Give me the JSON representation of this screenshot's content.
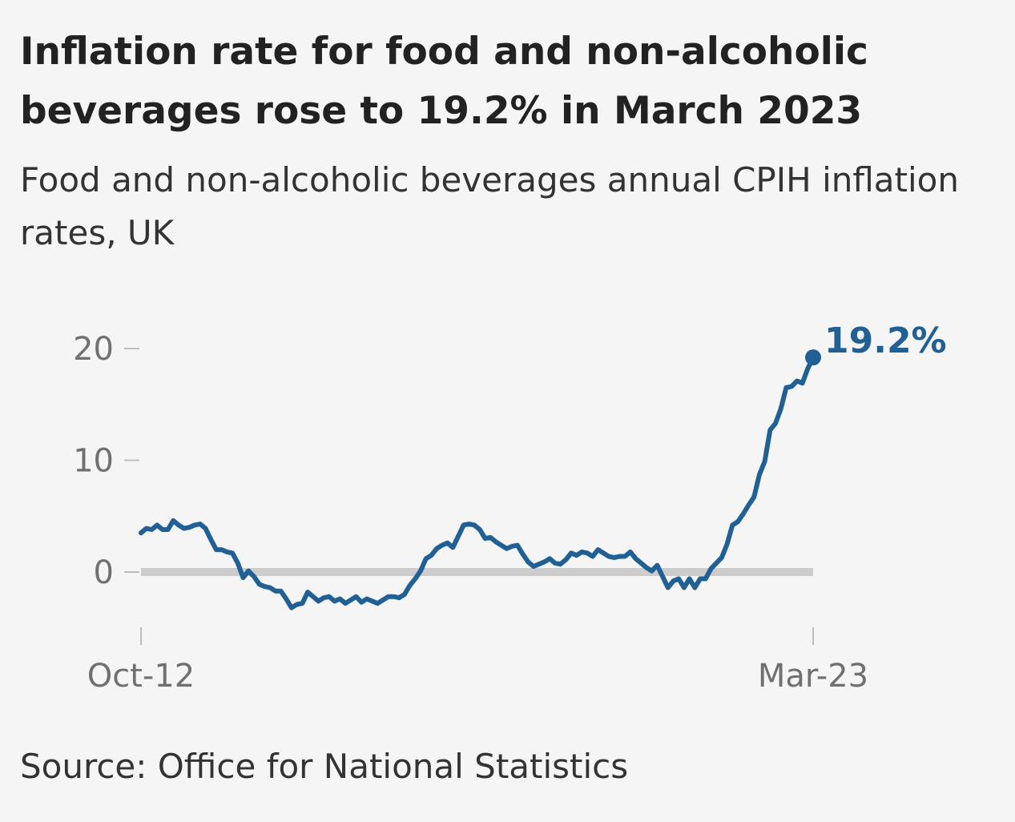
{
  "chart_data": {
    "type": "line",
    "title": "Inflation rate for food and non-alcoholic beverages rose to 19.2% in March 2023",
    "subtitle": "Food and non-alcoholic beverages annual CPIH inflation rates, UK",
    "source": "Source: Office for National Statistics",
    "xlabel": "",
    "ylabel": "",
    "x_tick_labels": [
      "Oct-12",
      "Mar-23"
    ],
    "y_ticks": [
      0,
      10,
      20
    ],
    "ylim": [
      -5,
      21
    ],
    "grid": false,
    "series": [
      {
        "name": "Food and non-alcoholic beverages annual CPIH inflation rate",
        "color": "#206095",
        "end_label": "19.2%",
        "x_start": "Oct-12",
        "x_end": "Mar-23",
        "values": [
          3.5,
          3.9,
          3.8,
          4.2,
          3.8,
          3.8,
          4.6,
          4.2,
          3.9,
          4.0,
          4.2,
          4.3,
          3.9,
          2.9,
          2.0,
          2.0,
          1.8,
          1.7,
          0.8,
          -0.5,
          0.1,
          -0.4,
          -1.1,
          -1.3,
          -1.4,
          -1.7,
          -1.7,
          -2.4,
          -3.2,
          -2.9,
          -2.8,
          -1.8,
          -2.2,
          -2.6,
          -2.3,
          -2.2,
          -2.6,
          -2.4,
          -2.8,
          -2.5,
          -2.2,
          -2.7,
          -2.4,
          -2.6,
          -2.8,
          -2.5,
          -2.2,
          -2.2,
          -2.3,
          -2.0,
          -1.2,
          -0.6,
          0.1,
          1.2,
          1.5,
          2.1,
          2.4,
          2.6,
          2.2,
          3.2,
          4.2,
          4.3,
          4.2,
          3.8,
          3.0,
          3.1,
          2.7,
          2.4,
          2.1,
          2.3,
          2.4,
          1.6,
          0.9,
          0.5,
          0.7,
          0.9,
          1.2,
          0.8,
          0.7,
          1.1,
          1.7,
          1.5,
          1.8,
          1.7,
          1.4,
          2.0,
          1.7,
          1.4,
          1.3,
          1.4,
          1.4,
          1.8,
          1.2,
          0.8,
          0.4,
          0.1,
          0.6,
          -0.4,
          -1.4,
          -0.8,
          -0.6,
          -1.4,
          -0.6,
          -1.4,
          -0.6,
          -0.6,
          0.3,
          0.8,
          1.3,
          2.5,
          4.2,
          4.5,
          5.2,
          6.0,
          6.7,
          8.7,
          9.9,
          12.7,
          13.3,
          14.6,
          16.5,
          16.6,
          17.1,
          16.9,
          18.2,
          19.2
        ]
      }
    ]
  }
}
